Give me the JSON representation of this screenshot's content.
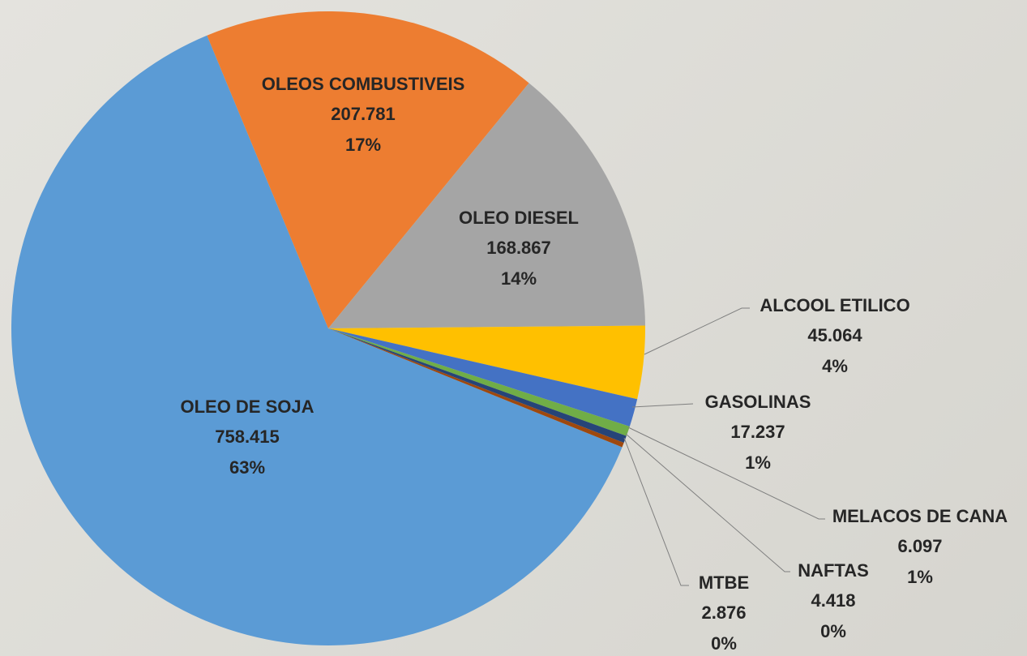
{
  "chart_data": {
    "type": "pie",
    "categories": [
      "OLEO DE SOJA",
      "OLEOS COMBUSTIVEIS",
      "OLEO DIESEL",
      "ALCOOL ETILICO",
      "GASOLINAS",
      "MELACOS DE CANA",
      "NAFTAS",
      "MTBE"
    ],
    "values": [
      758.415,
      207.781,
      168.867,
      45.064,
      17.237,
      6.097,
      4.418,
      2.876
    ],
    "percent_labels": [
      "63%",
      "17%",
      "14%",
      "4%",
      "1%",
      "1%",
      "0%",
      "0%"
    ],
    "colors": [
      "#5b9bd5",
      "#ed7d31",
      "#a5a5a5",
      "#ffc000",
      "#4472c4",
      "#70ad47",
      "#264478",
      "#9e480e"
    ]
  }
}
